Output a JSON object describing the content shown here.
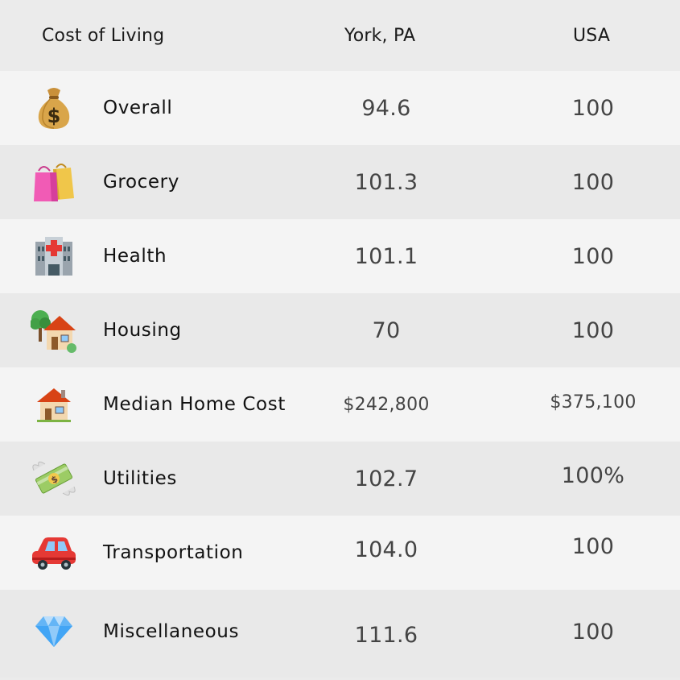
{
  "header": {
    "title": "Cost of Living",
    "col_city": "York, PA",
    "col_usa": "USA"
  },
  "rows": [
    {
      "icon": "money-bag-icon",
      "label": "Overall",
      "york": "94.6",
      "usa": "100"
    },
    {
      "icon": "shopping-bags-icon",
      "label": "Grocery",
      "york": "101.3",
      "usa": "100"
    },
    {
      "icon": "hospital-icon",
      "label": "Health",
      "york": "101.1",
      "usa": "100"
    },
    {
      "icon": "house-with-garden-icon",
      "label": "Housing",
      "york": "70",
      "usa": "100"
    },
    {
      "icon": "house-icon",
      "label": "Median Home Cost",
      "york": "$242,800",
      "usa": "$375,100"
    },
    {
      "icon": "money-with-wings-icon",
      "label": "Utilities",
      "york": "102.7",
      "usa": "100%"
    },
    {
      "icon": "car-icon",
      "label": "Transportation",
      "york": "104.0",
      "usa": "100"
    },
    {
      "icon": "gem-icon",
      "label": "Miscellaneous",
      "york": "111.6",
      "usa": "100"
    }
  ]
}
